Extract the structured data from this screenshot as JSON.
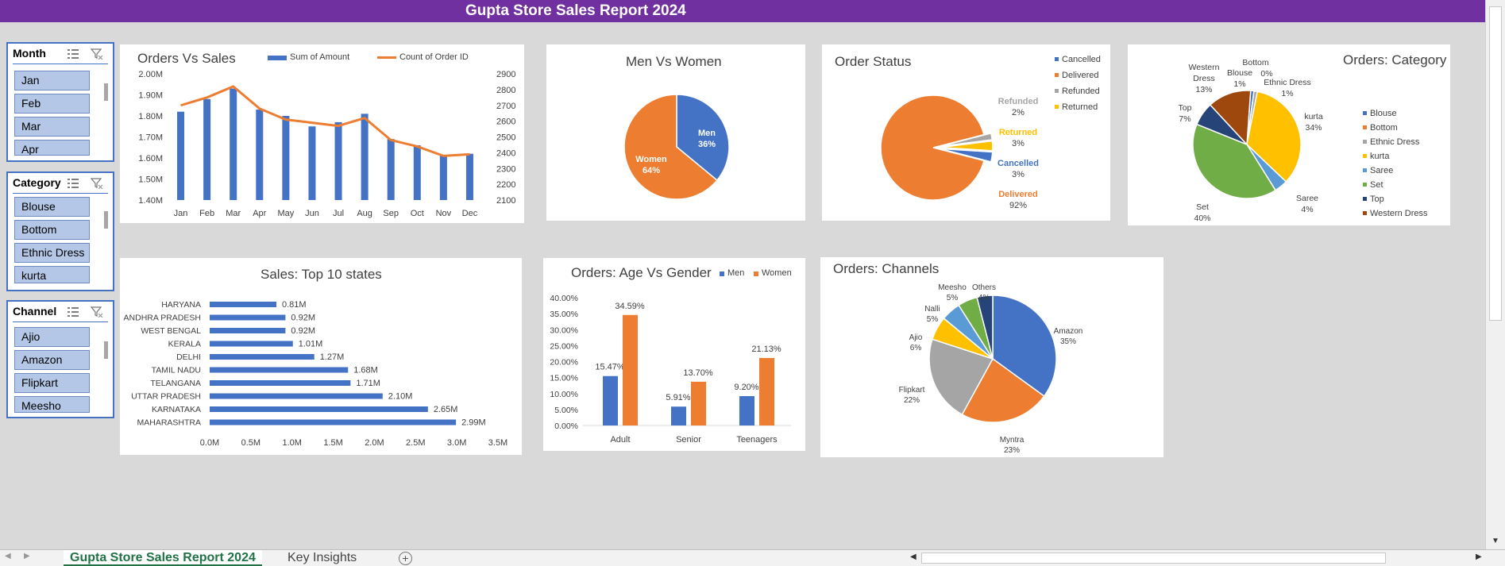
{
  "title": "Gupta Store Sales Report 2024",
  "slicers": {
    "month": {
      "title": "Month",
      "items": [
        "Jan",
        "Feb",
        "Mar",
        "Apr"
      ]
    },
    "category": {
      "title": "Category",
      "items": [
        "Blouse",
        "Bottom",
        "Ethnic Dress",
        "kurta"
      ]
    },
    "channel": {
      "title": "Channel",
      "items": [
        "Ajio",
        "Amazon",
        "Flipkart",
        "Meesho"
      ]
    }
  },
  "charts": {
    "orders_vs_sales": {
      "title": "Orders Vs Sales",
      "legend_amount": "Sum of Amount",
      "legend_count": "Count of Order ID"
    },
    "men_vs_women": {
      "title": "Men Vs Women"
    },
    "order_status": {
      "title": "Order Status"
    },
    "orders_category": {
      "title": "Orders: Category"
    },
    "top_states": {
      "title": "Sales: Top 10 states"
    },
    "age_gender": {
      "title": "Orders: Age Vs Gender",
      "legend_men": "Men",
      "legend_women": "Women"
    },
    "channels": {
      "title": "Orders: Channels"
    }
  },
  "chart_data": [
    {
      "type": "bar",
      "title": "Orders Vs Sales",
      "categories": [
        "Jan",
        "Feb",
        "Mar",
        "Apr",
        "May",
        "Jun",
        "Jul",
        "Aug",
        "Sep",
        "Oct",
        "Nov",
        "Dec"
      ],
      "series": [
        {
          "name": "Sum of Amount",
          "type": "bar",
          "axis": "left",
          "values": [
            1.82,
            1.88,
            1.93,
            1.83,
            1.8,
            1.75,
            1.77,
            1.81,
            1.69,
            1.66,
            1.61,
            1.62
          ]
        },
        {
          "name": "Count of Order ID",
          "type": "line",
          "axis": "right",
          "values": [
            2700,
            2750,
            2820,
            2680,
            2610,
            2590,
            2570,
            2620,
            2480,
            2440,
            2380,
            2390
          ]
        }
      ],
      "ylim_left": [
        1.4,
        2.0
      ],
      "ytick_left": [
        "2.00M",
        "1.90M",
        "1.80M",
        "1.70M",
        "1.60M",
        "1.50M",
        "1.40M"
      ],
      "ylim_right": [
        2100,
        2900
      ],
      "ytick_right": [
        "2900",
        "2800",
        "2700",
        "2600",
        "2500",
        "2400",
        "2300",
        "2200",
        "2100"
      ],
      "legend": "top"
    },
    {
      "type": "pie",
      "title": "Men Vs Women",
      "labels": [
        "Men",
        "Women"
      ],
      "values": [
        36,
        64
      ],
      "value_labels": [
        "36%",
        "64%"
      ],
      "colors": [
        "#4472c4",
        "#ed7d31"
      ]
    },
    {
      "type": "pie",
      "title": "Order Status",
      "labels": [
        "Cancelled",
        "Delivered",
        "Refunded",
        "Returned"
      ],
      "values": [
        3,
        92,
        2,
        3
      ],
      "value_labels": [
        "3%",
        "92%",
        "2%",
        "3%"
      ],
      "colors": [
        "#4472c4",
        "#ed7d31",
        "#a5a5a5",
        "#ffc000"
      ],
      "legend": "right"
    },
    {
      "type": "pie",
      "title": "Orders: Category",
      "labels": [
        "Blouse",
        "Bottom",
        "Ethnic Dress",
        "kurta",
        "Saree",
        "Set",
        "Top",
        "Western Dress"
      ],
      "values": [
        1,
        0,
        1,
        34,
        4,
        40,
        7,
        13
      ],
      "value_labels": [
        "1%",
        "0%",
        "1%",
        "34%",
        "4%",
        "40%",
        "7%",
        "13%"
      ],
      "colors": [
        "#4472c4",
        "#ed7d31",
        "#a5a5a5",
        "#ffc000",
        "#5b9bd5",
        "#70ad47",
        "#264478",
        "#9e480e"
      ],
      "legend": "right"
    },
    {
      "type": "bar",
      "orientation": "horizontal",
      "title": "Sales: Top 10 states",
      "categories": [
        "HARYANA",
        "ANDHRA PRADESH",
        "WEST BENGAL",
        "KERALA",
        "DELHI",
        "TAMIL NADU",
        "TELANGANA",
        "UTTAR PRADESH",
        "KARNATAKA",
        "MAHARASHTRA"
      ],
      "values": [
        0.81,
        0.92,
        0.92,
        1.01,
        1.27,
        1.68,
        1.71,
        2.1,
        2.65,
        2.99
      ],
      "value_labels": [
        "0.81M",
        "0.92M",
        "0.92M",
        "1.01M",
        "1.27M",
        "1.68M",
        "1.71M",
        "2.10M",
        "2.65M",
        "2.99M"
      ],
      "xlim": [
        0,
        3.5
      ],
      "xticks": [
        "0.0M",
        "0.5M",
        "1.0M",
        "1.5M",
        "2.0M",
        "2.5M",
        "3.0M",
        "3.5M"
      ]
    },
    {
      "type": "bar",
      "title": "Orders: Age Vs Gender",
      "categories": [
        "Adult",
        "Senior",
        "Teenagers"
      ],
      "series": [
        {
          "name": "Men",
          "values": [
            15.47,
            5.91,
            9.2
          ],
          "value_labels": [
            "15.47%",
            "5.91%",
            "9.20%"
          ]
        },
        {
          "name": "Women",
          "values": [
            34.59,
            13.7,
            21.13
          ],
          "value_labels": [
            "34.59%",
            "13.70%",
            "21.13%"
          ]
        }
      ],
      "ylim": [
        0,
        40
      ],
      "yticks": [
        "40.00%",
        "35.00%",
        "30.00%",
        "25.00%",
        "20.00%",
        "15.00%",
        "10.00%",
        "5.00%",
        "0.00%"
      ],
      "legend": "top"
    },
    {
      "type": "pie",
      "title": "Orders: Channels",
      "labels": [
        "Amazon",
        "Myntra",
        "Flipkart",
        "Ajio",
        "Nalli",
        "Meesho",
        "Others"
      ],
      "values": [
        35,
        23,
        22,
        6,
        5,
        5,
        4
      ],
      "value_labels": [
        "35%",
        "23%",
        "22%",
        "6%",
        "5%",
        "5%",
        "4%"
      ],
      "colors": [
        "#4472c4",
        "#ed7d31",
        "#a5a5a5",
        "#ffc000",
        "#5b9bd5",
        "#70ad47",
        "#264478"
      ]
    }
  ],
  "sheet_tabs": [
    "Gupta Store Sales Report 2024",
    "Key Insights"
  ]
}
